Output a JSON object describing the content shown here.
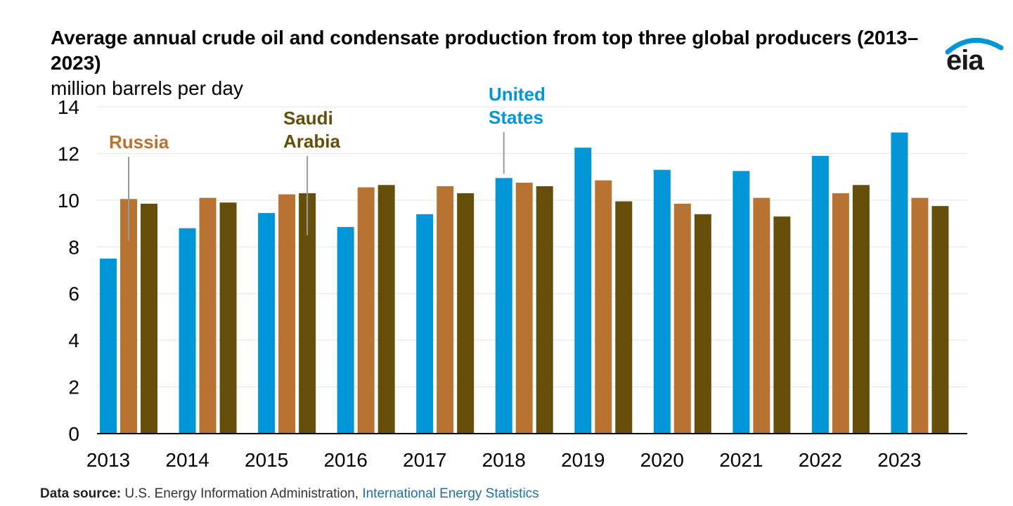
{
  "header": {
    "title": "Average annual crude oil and condensate production from top three global producers (2013–2023)",
    "unit": "million barrels per day"
  },
  "logo": {
    "text": "eia",
    "icon": "eia-logo-arc"
  },
  "footer": {
    "label": "Data source:",
    "source": "U.S. Energy Information Administration,",
    "link": "International Energy Statistics"
  },
  "chart_data": {
    "type": "bar",
    "title": "Average annual crude oil and condensate production from top three global producers (2013–2023)",
    "ylabel": "million barrels per day",
    "xlabel": "",
    "ylim": [
      0,
      14
    ],
    "yticks": [
      0,
      2,
      4,
      6,
      8,
      10,
      12,
      14
    ],
    "grid": true,
    "categories": [
      "2013",
      "2014",
      "2015",
      "2016",
      "2017",
      "2018",
      "2019",
      "2020",
      "2021",
      "2022",
      "2023"
    ],
    "series": [
      {
        "name": "United States",
        "label": [
          "United",
          "States"
        ],
        "color": "#0096d7",
        "values": [
          7.5,
          8.8,
          9.45,
          8.85,
          9.4,
          10.95,
          12.25,
          11.3,
          11.25,
          11.9,
          12.9
        ]
      },
      {
        "name": "Russia",
        "label": [
          "Russia"
        ],
        "color": "#b87333",
        "values": [
          10.05,
          10.1,
          10.25,
          10.55,
          10.6,
          10.75,
          10.85,
          9.85,
          10.1,
          10.3,
          10.1
        ]
      },
      {
        "name": "Saudi Arabia",
        "label": [
          "Saudi",
          "Arabia"
        ],
        "color": "#654d0a",
        "values": [
          9.85,
          9.9,
          10.3,
          10.65,
          10.3,
          10.6,
          9.95,
          9.4,
          9.3,
          10.65,
          9.75
        ]
      }
    ],
    "annotations": [
      {
        "series": "Russia",
        "category": "2013"
      },
      {
        "series": "Saudi Arabia",
        "category": "2015"
      },
      {
        "series": "United States",
        "category": "2018"
      }
    ]
  }
}
